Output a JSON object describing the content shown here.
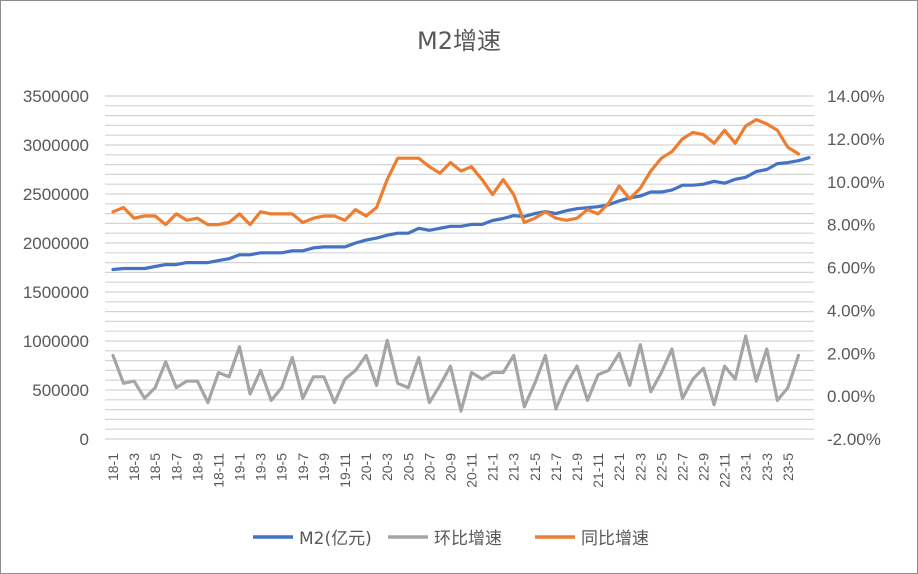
{
  "chart_data": {
    "type": "line",
    "title": "M2增速",
    "left_axis": {
      "ylim": [
        0,
        3500000
      ],
      "ticks": [
        0,
        500000,
        1000000,
        1500000,
        2000000,
        2500000,
        3000000,
        3500000
      ],
      "tick_labels": [
        "0",
        "500000",
        "1000000",
        "1500000",
        "2000000",
        "2500000",
        "3000000",
        "3500000"
      ]
    },
    "right_axis": {
      "ylim": [
        -2,
        14
      ],
      "ticks": [
        -2,
        0,
        2,
        4,
        6,
        8,
        10,
        12,
        14
      ],
      "tick_labels": [
        "-2.00%",
        "0.00%",
        "2.00%",
        "4.00%",
        "6.00%",
        "8.00%",
        "10.00%",
        "12.00%",
        "14.00%"
      ]
    },
    "x_tick_labels": [
      "18-1",
      "18-3",
      "18-5",
      "18-7",
      "18-9",
      "18-11",
      "19-1",
      "19-3",
      "19-5",
      "19-7",
      "19-9",
      "19-11",
      "20-1",
      "20-3",
      "20-5",
      "20-7",
      "20-9",
      "20-11",
      "21-1",
      "21-3",
      "21-5",
      "21-7",
      "21-9",
      "21-11",
      "22-1",
      "22-3",
      "22-5",
      "22-7",
      "22-9",
      "22-11",
      "23-1",
      "23-3",
      "23-5"
    ],
    "grid": "horizontal",
    "legend_position": "bottom",
    "series": [
      {
        "name": "M2(亿元)",
        "axis": "left",
        "color": "#4472c4",
        "values": [
          1730000,
          1740000,
          1740000,
          1740000,
          1760000,
          1780000,
          1780000,
          1800000,
          1800000,
          1800000,
          1820000,
          1840000,
          1880000,
          1880000,
          1900000,
          1900000,
          1900000,
          1920000,
          1920000,
          1950000,
          1960000,
          1960000,
          1960000,
          2000000,
          2030000,
          2050000,
          2080000,
          2100000,
          2100000,
          2150000,
          2130000,
          2150000,
          2170000,
          2170000,
          2190000,
          2190000,
          2230000,
          2250000,
          2280000,
          2270000,
          2300000,
          2320000,
          2300000,
          2330000,
          2350000,
          2360000,
          2370000,
          2390000,
          2430000,
          2460000,
          2480000,
          2520000,
          2520000,
          2540000,
          2590000,
          2590000,
          2600000,
          2630000,
          2610000,
          2650000,
          2670000,
          2730000,
          2750000,
          2810000,
          2820000,
          2840000,
          2870000
        ]
      },
      {
        "name": "环比增速",
        "axis": "right",
        "color": "#a5a5a5",
        "values": [
          1.9,
          0.6,
          0.7,
          -0.1,
          0.4,
          1.6,
          0.4,
          0.7,
          0.7,
          -0.3,
          1.1,
          0.9,
          2.3,
          0.1,
          1.2,
          -0.2,
          0.4,
          1.8,
          -0.1,
          0.9,
          0.9,
          -0.3,
          0.8,
          1.2,
          1.9,
          0.5,
          2.6,
          0.6,
          0.4,
          1.8,
          -0.3,
          0.5,
          1.4,
          -0.7,
          1.1,
          0.8,
          1.1,
          1.1,
          1.9,
          -0.5,
          0.6,
          1.9,
          -0.6,
          0.6,
          1.4,
          -0.2,
          1.0,
          1.2,
          2.0,
          0.5,
          2.4,
          0.2,
          1.1,
          2.2,
          -0.1,
          0.8,
          1.3,
          -0.4,
          1.4,
          0.8,
          2.8,
          0.7,
          2.2,
          -0.2,
          0.4,
          1.9
        ]
      },
      {
        "name": "同比增速",
        "axis": "right",
        "color": "#ed7d31",
        "values": [
          8.6,
          8.8,
          8.3,
          8.4,
          8.4,
          8.0,
          8.5,
          8.2,
          8.3,
          8.0,
          8.0,
          8.1,
          8.5,
          8.0,
          8.6,
          8.5,
          8.5,
          8.5,
          8.1,
          8.3,
          8.4,
          8.4,
          8.2,
          8.7,
          8.4,
          8.8,
          10.1,
          11.1,
          11.1,
          11.1,
          10.7,
          10.4,
          10.9,
          10.5,
          10.7,
          10.1,
          9.4,
          10.1,
          9.4,
          8.1,
          8.3,
          8.6,
          8.3,
          8.2,
          8.3,
          8.7,
          8.5,
          9.0,
          9.8,
          9.2,
          9.7,
          10.5,
          11.1,
          11.4,
          12.0,
          12.3,
          12.2,
          11.8,
          12.4,
          11.8,
          12.6,
          12.9,
          12.7,
          12.4,
          11.6,
          11.3
        ]
      }
    ]
  }
}
